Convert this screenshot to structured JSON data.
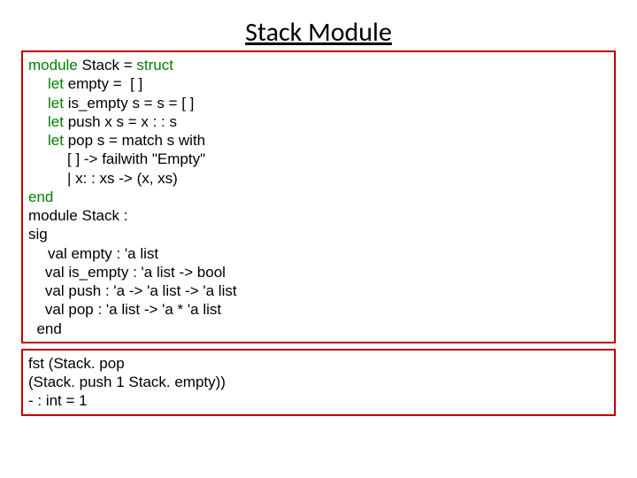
{
  "title": "Stack Module",
  "colors": {
    "border": "#c00000",
    "keyword": "#008000",
    "text": "#000000",
    "background": "#ffffff"
  },
  "typography": {
    "title_fontsize": 30,
    "code_fontsize": 17,
    "title_font": "Calibri",
    "code_font": "Arial"
  },
  "main_block": {
    "l01_kw": "module",
    "l01_rest": " Stack = ",
    "l01_kw2": "struct",
    "l02_pre": "",
    "l02_kw": "let",
    "l02_rest": " empty =  [ ]",
    "l03_kw": "let",
    "l03_rest": " is_empty s = s = [ ]",
    "l04_kw": "let",
    "l04_rest": " push x s = x : : s",
    "l05_kw": "let",
    "l05_rest": " pop s = match s with",
    "l06": "[ ] -> failwith \"Empty\"",
    "l07": "| x: : xs -> (x, xs)",
    "l08_kw": "end",
    "l09": "module Stack :",
    "l10": "sig",
    "l11": "val empty : 'a list",
    "l12": "val is_empty : 'a list -> bool",
    "l13": "val push : 'a -> 'a list -> 'a list",
    "l14": "val pop : 'a list -> 'a * 'a list",
    "l15": "end"
  },
  "sub_block": {
    "l1": "fst (Stack. pop",
    "l2": "(Stack. push 1 Stack. empty))",
    "l3": "- : int = 1"
  }
}
